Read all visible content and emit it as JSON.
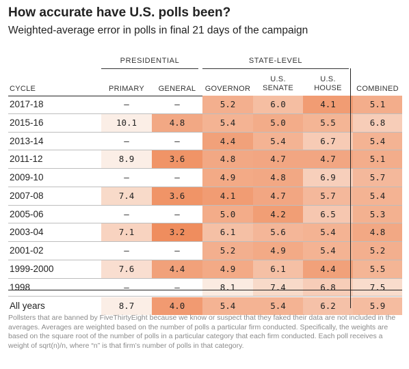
{
  "header": {
    "title": "How accurate have U.S. polls been?",
    "subtitle": "Weighted-average error in polls in final 21 days of the campaign"
  },
  "groups": {
    "presidential": "PRESIDENTIAL",
    "state_level": "STATE-LEVEL"
  },
  "columns": [
    {
      "key": "cycle",
      "lines": [
        "CYCLE"
      ]
    },
    {
      "key": "primary",
      "lines": [
        "PRIMARY"
      ]
    },
    {
      "key": "general",
      "lines": [
        "GENERAL"
      ]
    },
    {
      "key": "governor",
      "lines": [
        "GOVERNOR"
      ]
    },
    {
      "key": "senate",
      "lines": [
        "U.S.",
        "SENATE"
      ]
    },
    {
      "key": "house",
      "lines": [
        "U.S.",
        "HOUSE"
      ]
    },
    {
      "key": "combined",
      "lines": [
        "COMBINED"
      ]
    }
  ],
  "colors": {
    "scale_low": "#fbeee6",
    "scale_high": "#ef8d5e",
    "text": "#222222",
    "footnote": "#8a8a8a"
  },
  "chart_data": {
    "type": "table",
    "title": "How accurate have U.S. polls been?",
    "subtitle": "Weighted-average error in polls in final 21 days of the campaign",
    "columns": [
      "CYCLE",
      "PRIMARY",
      "GENERAL",
      "GOVERNOR",
      "U.S. SENATE",
      "U.S. HOUSE",
      "COMBINED"
    ],
    "rows": [
      {
        "cycle": "2017-18",
        "primary": null,
        "general": null,
        "governor": 5.2,
        "senate": 6.0,
        "house": 4.1,
        "combined": 5.1
      },
      {
        "cycle": "2015-16",
        "primary": 10.1,
        "general": 4.8,
        "governor": 5.4,
        "senate": 5.0,
        "house": 5.5,
        "combined": 6.8
      },
      {
        "cycle": "2013-14",
        "primary": null,
        "general": null,
        "governor": 4.4,
        "senate": 5.4,
        "house": 6.7,
        "combined": 5.4
      },
      {
        "cycle": "2011-12",
        "primary": 8.9,
        "general": 3.6,
        "governor": 4.8,
        "senate": 4.7,
        "house": 4.7,
        "combined": 5.1
      },
      {
        "cycle": "2009-10",
        "primary": null,
        "general": null,
        "governor": 4.9,
        "senate": 4.8,
        "house": 6.9,
        "combined": 5.7
      },
      {
        "cycle": "2007-08",
        "primary": 7.4,
        "general": 3.6,
        "governor": 4.1,
        "senate": 4.7,
        "house": 5.7,
        "combined": 5.4
      },
      {
        "cycle": "2005-06",
        "primary": null,
        "general": null,
        "governor": 5.0,
        "senate": 4.2,
        "house": 6.5,
        "combined": 5.3
      },
      {
        "cycle": "2003-04",
        "primary": 7.1,
        "general": 3.2,
        "governor": 6.1,
        "senate": 5.6,
        "house": 5.4,
        "combined": 4.8
      },
      {
        "cycle": "2001-02",
        "primary": null,
        "general": null,
        "governor": 5.2,
        "senate": 4.9,
        "house": 5.4,
        "combined": 5.2
      },
      {
        "cycle": "1999-2000",
        "primary": 7.6,
        "general": 4.4,
        "governor": 4.9,
        "senate": 6.1,
        "house": 4.4,
        "combined": 5.5
      },
      {
        "cycle": "1998",
        "primary": null,
        "general": null,
        "governor": 8.1,
        "senate": 7.4,
        "house": 6.8,
        "combined": 7.5
      },
      {
        "cycle": "All years",
        "primary": 8.7,
        "general": 4.0,
        "governor": 5.4,
        "senate": 5.4,
        "house": 6.2,
        "combined": 5.9
      }
    ]
  },
  "dash": "—",
  "footnote": "Pollsters that are banned by FiveThirtyEight because we know or suspect that they faked their data are not included in the averages. Averages are weighted based on the number of polls a particular firm conducted. Specifically, the weights are based on the square root of the number of polls in a particular category that each firm conducted. Each poll receives a weight of sqrt(n)/n, where “n” is that firm’s number of polls in that category."
}
